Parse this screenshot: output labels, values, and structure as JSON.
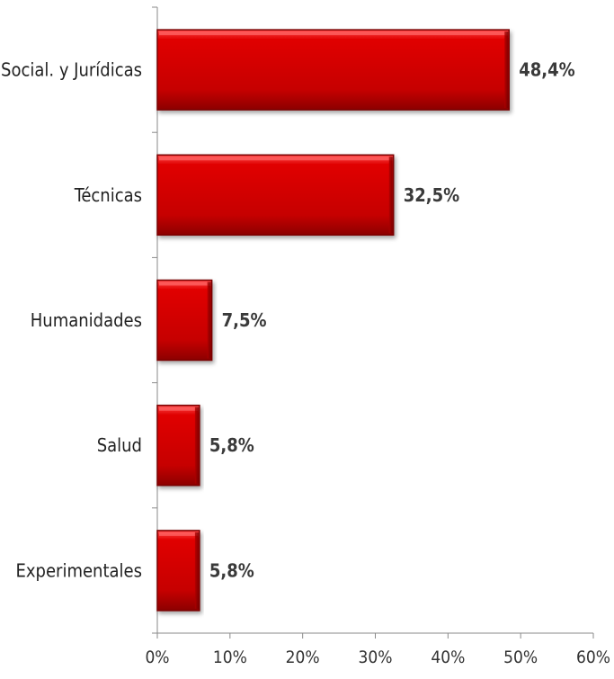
{
  "chart_data": {
    "type": "bar",
    "orientation": "horizontal",
    "title": "",
    "xlabel": "",
    "ylabel": "",
    "categories": [
      "Social. y Jurídicas",
      "Técnicas",
      "Humanidades",
      "Salud",
      "Experimentales"
    ],
    "values": [
      48.4,
      32.5,
      7.5,
      5.8,
      5.8
    ],
    "value_labels": [
      "48,4%",
      "32,5%",
      "7,5%",
      "5,8%",
      "5,8%"
    ],
    "xlim": [
      0,
      60
    ],
    "xticks": [
      0,
      10,
      20,
      30,
      40,
      50,
      60
    ],
    "xtick_labels": [
      "0%",
      "10%",
      "20%",
      "30%",
      "40%",
      "50%",
      "60%"
    ],
    "grid": false,
    "legend": "none",
    "bar_color": "#cc0000",
    "bar_highlight_color": "#ff3b3b",
    "bar_shadow_color": "#6e0000"
  }
}
